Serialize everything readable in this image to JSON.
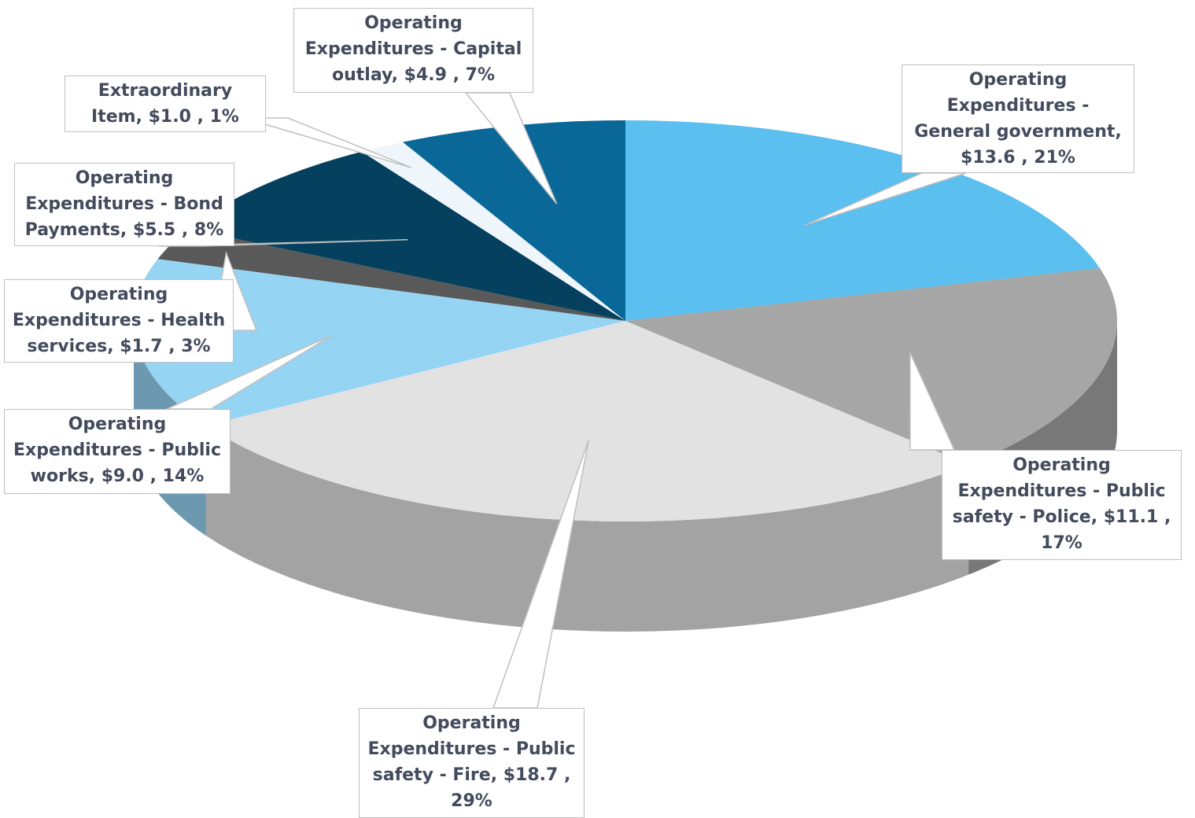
{
  "chart_data": {
    "type": "pie3d",
    "categories": [
      "Operating Expenditures - General government",
      "Operating Expenditures - Public safety - Police",
      "Operating Expenditures - Public safety - Fire",
      "Operating Expenditures - Public works",
      "Operating Expenditures - Health services",
      "Operating Expenditures - Bond Payments",
      "Extraordinary Item",
      "Operating Expenditures - Capital outlay"
    ],
    "values": [
      13.6,
      11.1,
      18.7,
      9.0,
      1.7,
      5.5,
      1.0,
      4.9
    ],
    "value_labels": [
      "$13.6",
      "$11.1",
      "$18.7",
      "$9.0",
      "$1.7",
      "$5.5",
      "$1.0",
      "$4.9"
    ],
    "percents": [
      21,
      17,
      29,
      14,
      3,
      8,
      1,
      7
    ],
    "percent_labels": [
      "21%",
      "17%",
      "29%",
      "14%",
      "3%",
      "8%",
      "1%",
      "7%"
    ],
    "colors": [
      "#5bbfef",
      "#a6a6a6",
      "#e2e2e2",
      "#96d4f4",
      "#595959",
      "#05405f",
      "#eef6fb",
      "#0a6898"
    ]
  }
}
